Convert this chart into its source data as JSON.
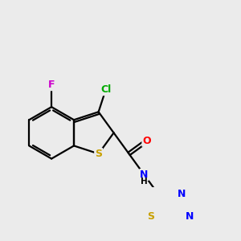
{
  "background_color": "#ebebeb",
  "atom_colors": {
    "C": "#000000",
    "S": "#c8a000",
    "N": "#0000ff",
    "O": "#ff0000",
    "F": "#cc00cc",
    "Cl": "#00aa00",
    "H": "#000000"
  },
  "bond_color": "#000000",
  "lw": 1.6
}
